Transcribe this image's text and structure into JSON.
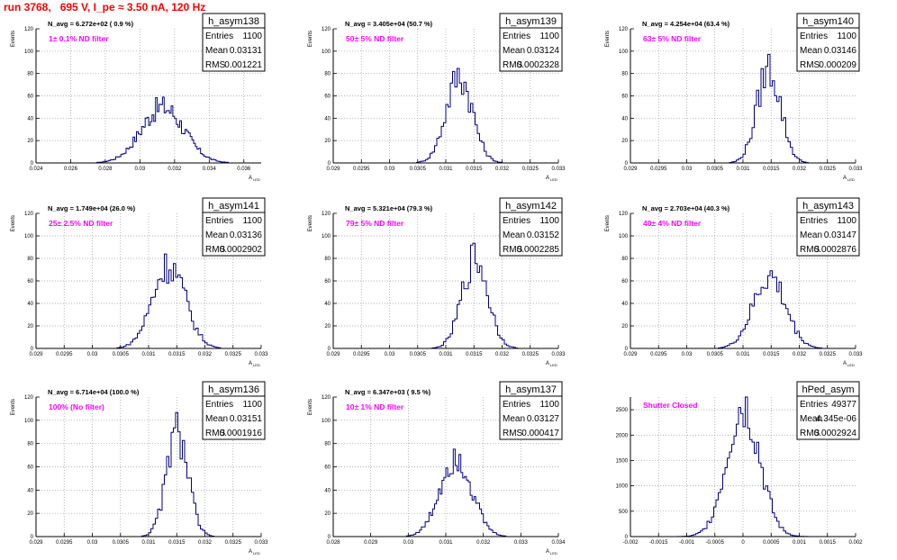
{
  "page": {
    "title": "run 3768,   695 V, I_pe ≈ 3.50 nA, 120 Hz"
  },
  "colors": {
    "hist": "#000080",
    "title": "#ff0000",
    "label": "#ff00ff",
    "grid": "#999999"
  },
  "chart_data": [
    {
      "type": "histogram",
      "name": "h_asym138",
      "stats": {
        "entries_label": "Entries",
        "entries": "1100",
        "mean_label": "Mean",
        "mean": "0.03131",
        "rms_label": "RMS",
        "rms": "0.001221"
      },
      "navg": "N_avg = 6.272e+02 ( 0.9 %)",
      "label": "1± 0.1% ND filter",
      "ylabel": "Events",
      "xlabel": "A",
      "xlabel_sub": "LED",
      "xlim": [
        0.024,
        0.037
      ],
      "ylim": [
        0,
        120
      ],
      "xticks": [
        0.024,
        0.026,
        0.028,
        0.03,
        0.032,
        0.034,
        0.036
      ],
      "xtick_labels": [
        "0.024",
        "0.026",
        "0.028",
        "0.03",
        "0.032",
        "0.034",
        "0.036"
      ],
      "yticks": [
        0,
        20,
        40,
        60,
        80,
        100,
        120
      ],
      "ytick_labels": [
        "0",
        "20",
        "40",
        "60",
        "80",
        "100",
        "120"
      ],
      "shape": {
        "mean": 0.03131,
        "sigma": 0.001221,
        "peak": 50,
        "bin": 0.0001
      }
    },
    {
      "type": "histogram",
      "name": "h_asym139",
      "stats": {
        "entries_label": "Entries",
        "entries": "1100",
        "mean_label": "Mean",
        "mean": "0.03124",
        "rms_label": "RMS",
        "rms": "0.0002328"
      },
      "navg": "N_avg = 3.405e+04 (50.7 %)",
      "label": "50± 5% ND filter",
      "ylabel": "Events",
      "xlabel": "A",
      "xlabel_sub": "LED",
      "xlim": [
        0.029,
        0.033
      ],
      "ylim": [
        0,
        120
      ],
      "xticks": [
        0.029,
        0.0295,
        0.03,
        0.0305,
        0.031,
        0.0315,
        0.032,
        0.0325,
        0.033
      ],
      "xtick_labels": [
        "0.029",
        "0.0295",
        "0.03",
        "0.0305",
        "0.031",
        "0.0315",
        "0.032",
        "0.0325",
        "0.033"
      ],
      "yticks": [
        0,
        20,
        40,
        60,
        80,
        100,
        120
      ],
      "ytick_labels": [
        "0",
        "20",
        "40",
        "60",
        "80",
        "100",
        "120"
      ],
      "shape": {
        "mean": 0.03124,
        "sigma": 0.0002328,
        "peak": 78,
        "bin": 4e-05
      }
    },
    {
      "type": "histogram",
      "name": "h_asym140",
      "stats": {
        "entries_label": "Entries",
        "entries": "1100",
        "mean_label": "Mean",
        "mean": "0.03146",
        "rms_label": "RMS",
        "rms": "0.000209"
      },
      "navg": "N_avg = 4.254e+04 (63.4 %)",
      "label": "63± 5% ND filter",
      "ylabel": "Events",
      "xlabel": "A",
      "xlabel_sub": "LED",
      "xlim": [
        0.029,
        0.033
      ],
      "ylim": [
        0,
        120
      ],
      "xticks": [
        0.029,
        0.0295,
        0.03,
        0.0305,
        0.031,
        0.0315,
        0.032,
        0.0325,
        0.033
      ],
      "xtick_labels": [
        "0.029",
        "0.0295",
        "0.03",
        "0.0305",
        "0.031",
        "0.0315",
        "0.032",
        "0.0325",
        "0.033"
      ],
      "yticks": [
        0,
        20,
        40,
        60,
        80,
        100,
        120
      ],
      "ytick_labels": [
        "0",
        "20",
        "40",
        "60",
        "80",
        "100",
        "120"
      ],
      "shape": {
        "mean": 0.03146,
        "sigma": 0.000209,
        "peak": 85,
        "bin": 4e-05
      }
    },
    {
      "type": "histogram",
      "name": "h_asym141",
      "stats": {
        "entries_label": "Entries",
        "entries": "1100",
        "mean_label": "Mean",
        "mean": "0.03136",
        "rms_label": "RMS",
        "rms": "0.0002902"
      },
      "navg": "N_avg = 1.749e+04 (26.0 %)",
      "label": "25± 2.5% ND filter",
      "ylabel": "Events",
      "xlabel": "A",
      "xlabel_sub": "LED",
      "xlim": [
        0.029,
        0.033
      ],
      "ylim": [
        0,
        120
      ],
      "xticks": [
        0.029,
        0.0295,
        0.03,
        0.0305,
        0.031,
        0.0315,
        0.032,
        0.0325,
        0.033
      ],
      "xtick_labels": [
        "0.029",
        "0.0295",
        "0.03",
        "0.0305",
        "0.031",
        "0.0315",
        "0.032",
        "0.0325",
        "0.033"
      ],
      "yticks": [
        0,
        20,
        40,
        60,
        80,
        100,
        120
      ],
      "ytick_labels": [
        "0",
        "20",
        "40",
        "60",
        "80",
        "100",
        "120"
      ],
      "shape": {
        "mean": 0.03136,
        "sigma": 0.0002902,
        "peak": 74,
        "bin": 4e-05
      }
    },
    {
      "type": "histogram",
      "name": "h_asym142",
      "stats": {
        "entries_label": "Entries",
        "entries": "1100",
        "mean_label": "Mean",
        "mean": "0.03152",
        "rms_label": "RMS",
        "rms": "0.0002285"
      },
      "navg": "N_avg = 5.321e+04 (79.3 %)",
      "label": "79± 5% ND filter",
      "ylabel": "Events",
      "xlabel": "A",
      "xlabel_sub": "LED",
      "xlim": [
        0.029,
        0.033
      ],
      "ylim": [
        0,
        120
      ],
      "xticks": [
        0.029,
        0.0295,
        0.03,
        0.0305,
        0.031,
        0.0315,
        0.032,
        0.0325,
        0.033
      ],
      "xtick_labels": [
        "0.029",
        "0.0295",
        "0.03",
        "0.0305",
        "0.031",
        "0.0315",
        "0.032",
        "0.0325",
        "0.033"
      ],
      "yticks": [
        0,
        20,
        40,
        60,
        80,
        100,
        120
      ],
      "ytick_labels": [
        "0",
        "20",
        "40",
        "60",
        "80",
        "100",
        "120"
      ],
      "shape": {
        "mean": 0.03152,
        "sigma": 0.0002285,
        "peak": 80,
        "bin": 4e-05
      }
    },
    {
      "type": "histogram",
      "name": "h_asym143",
      "stats": {
        "entries_label": "Entries",
        "entries": "1100",
        "mean_label": "Mean",
        "mean": "0.03147",
        "rms_label": "RMS",
        "rms": "0.0002876"
      },
      "navg": "N_avg = 2.703e+04 (40.3 %)",
      "label": "40± 4% ND filter",
      "ylabel": "Events",
      "xlabel": "A",
      "xlabel_sub": "LED",
      "xlim": [
        0.029,
        0.033
      ],
      "ylim": [
        0,
        120
      ],
      "xticks": [
        0.029,
        0.0295,
        0.03,
        0.0305,
        0.031,
        0.0315,
        0.032,
        0.0325,
        0.033
      ],
      "xtick_labels": [
        "0.029",
        "0.0295",
        "0.03",
        "0.0305",
        "0.031",
        "0.0315",
        "0.032",
        "0.0325",
        "0.033"
      ],
      "yticks": [
        0,
        20,
        40,
        60,
        80,
        100,
        120
      ],
      "ytick_labels": [
        "0",
        "20",
        "40",
        "60",
        "80",
        "100",
        "120"
      ],
      "shape": {
        "mean": 0.03147,
        "sigma": 0.0002876,
        "peak": 63,
        "bin": 4e-05
      }
    },
    {
      "type": "histogram",
      "name": "h_asym136",
      "stats": {
        "entries_label": "Entries",
        "entries": "1100",
        "mean_label": "Mean",
        "mean": "0.03151",
        "rms_label": "RMS",
        "rms": "0.0001916"
      },
      "navg": "N_avg = 6.714e+04 (100.0 %)",
      "label": "100% (No filter)",
      "ylabel": "Events",
      "xlabel": "A",
      "xlabel_sub": "LED",
      "xlim": [
        0.029,
        0.033
      ],
      "ylim": [
        0,
        120
      ],
      "xticks": [
        0.029,
        0.0295,
        0.03,
        0.0305,
        0.031,
        0.0315,
        0.032,
        0.0325,
        0.033
      ],
      "xtick_labels": [
        "0.029",
        "0.0295",
        "0.03",
        "0.0305",
        "0.031",
        "0.0315",
        "0.032",
        "0.0325",
        "0.033"
      ],
      "yticks": [
        0,
        20,
        40,
        60,
        80,
        100,
        120
      ],
      "ytick_labels": [
        "0",
        "20",
        "40",
        "60",
        "80",
        "100",
        "120"
      ],
      "shape": {
        "mean": 0.03151,
        "sigma": 0.0001916,
        "peak": 90,
        "bin": 4e-05
      }
    },
    {
      "type": "histogram",
      "name": "h_asym137",
      "stats": {
        "entries_label": "Entries",
        "entries": "1100",
        "mean_label": "Mean",
        "mean": "0.03127",
        "rms_label": "RMS",
        "rms": "0.000417"
      },
      "navg": "N_avg = 6.347e+03 ( 9.5 %)",
      "label": "10± 1% ND filter",
      "ylabel": "Events",
      "xlabel": "A",
      "xlabel_sub": "LED",
      "xlim": [
        0.028,
        0.034
      ],
      "ylim": [
        0,
        120
      ],
      "xticks": [
        0.028,
        0.029,
        0.03,
        0.031,
        0.032,
        0.033,
        0.034
      ],
      "xtick_labels": [
        "0.028",
        "0.029",
        "0.03",
        "0.031",
        "0.032",
        "0.033",
        "0.034"
      ],
      "yticks": [
        0,
        20,
        40,
        60,
        80,
        100,
        120
      ],
      "ytick_labels": [
        "0",
        "20",
        "40",
        "60",
        "80",
        "100",
        "120"
      ],
      "shape": {
        "mean": 0.03127,
        "sigma": 0.000417,
        "peak": 70,
        "bin": 5e-05
      }
    },
    {
      "type": "histogram",
      "name": "hPed_asym",
      "stats": {
        "entries_label": "Entries",
        "entries": "49377",
        "mean_label": "Mean",
        "mean": "4.345e-06",
        "rms_label": "RMS",
        "rms": "0.0002924"
      },
      "navg": "",
      "label": "Shutter Closed",
      "ylabel": "",
      "xlabel": "",
      "xlabel_sub": "",
      "xlim": [
        -0.002,
        0.002
      ],
      "ylim": [
        0,
        2750
      ],
      "xticks": [
        -0.002,
        -0.0015,
        -0.001,
        -0.0005,
        0,
        0.0005,
        0.001,
        0.0015,
        0.002
      ],
      "xtick_labels": [
        "-0.002",
        "-0.0015",
        "-0.001",
        "-0.0005",
        "0",
        "0.0005",
        "0.001",
        "0.0015",
        "0.002"
      ],
      "yticks": [
        0,
        500,
        1000,
        1500,
        2000,
        2500
      ],
      "ytick_labels": [
        "0",
        "500",
        "1000",
        "1500",
        "2000",
        "2500"
      ],
      "shape": {
        "mean": 4.3e-06,
        "sigma": 0.0002924,
        "peak": 2600,
        "bin": 4e-05
      }
    }
  ]
}
